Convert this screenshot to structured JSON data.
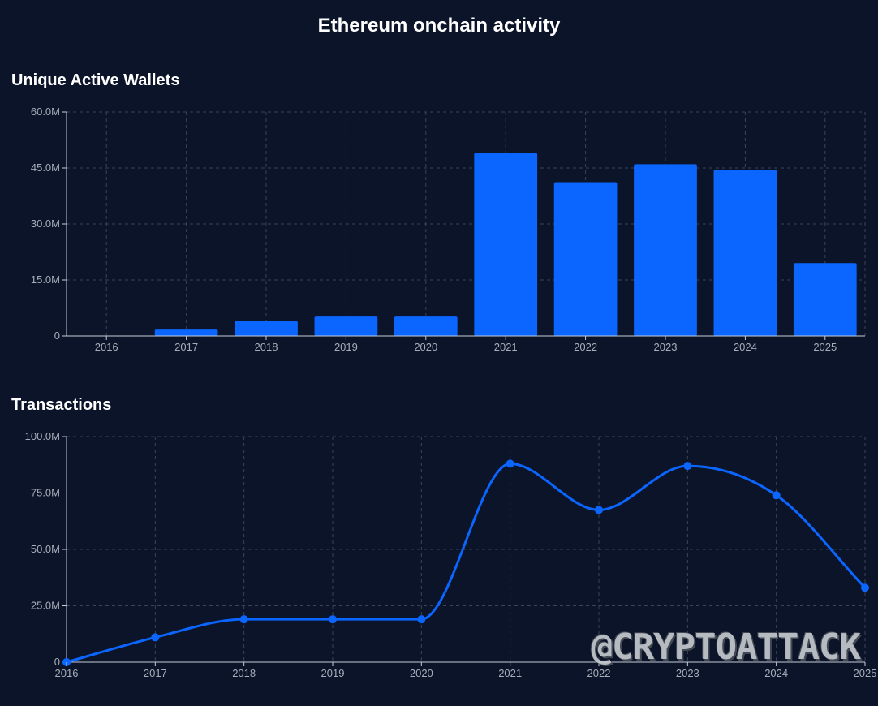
{
  "page": {
    "title": "Ethereum onchain activity",
    "watermark": "@CRYPTOATTACK"
  },
  "colors": {
    "background": "#0b1429",
    "series": "#0a66ff",
    "grid": "#3a4455",
    "axis": "#c7ccd6",
    "tick_text": "#a7adb9"
  },
  "chart_data": [
    {
      "type": "bar",
      "title": "Unique Active Wallets",
      "categories": [
        "2016",
        "2017",
        "2018",
        "2019",
        "2020",
        "2021",
        "2022",
        "2023",
        "2024",
        "2025"
      ],
      "values": [
        0,
        1.7,
        4.0,
        5.2,
        5.2,
        49.0,
        41.2,
        46.0,
        44.5,
        19.5
      ],
      "unit": "M",
      "ylim": [
        0,
        60
      ],
      "yticks": [
        0,
        15,
        30,
        45,
        60
      ],
      "ytick_labels": [
        "0",
        "15.0M",
        "30.0M",
        "45.0M",
        "60.0M"
      ],
      "grid": true
    },
    {
      "type": "line",
      "title": "Transactions",
      "x": [
        "2016",
        "2017",
        "2018",
        "2019",
        "2020",
        "2021",
        "2022",
        "2023",
        "2024",
        "2025"
      ],
      "values": [
        0,
        11,
        19,
        19,
        19,
        88,
        67.5,
        87,
        74,
        33
      ],
      "unit": "M",
      "ylim": [
        0,
        100
      ],
      "yticks": [
        0,
        25,
        50,
        75,
        100
      ],
      "ytick_labels": [
        "0",
        "25.0M",
        "50.0M",
        "75.0M",
        "100.0M"
      ],
      "smooth": true,
      "markers": true,
      "grid": true
    }
  ]
}
